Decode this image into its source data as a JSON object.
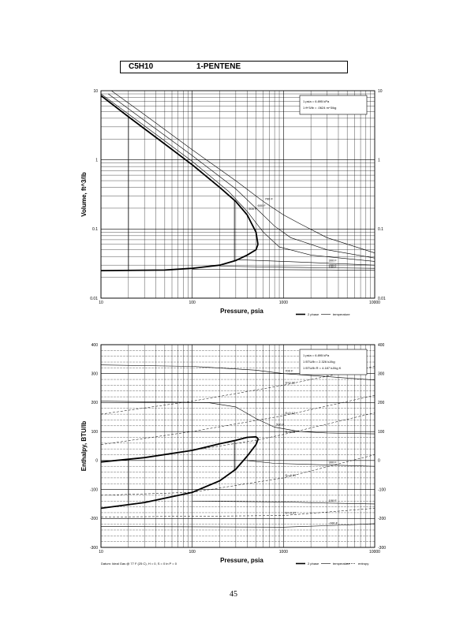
{
  "header": {
    "formula": "C5H10",
    "compound": "1-PENTENE"
  },
  "page_number": "45",
  "chart_data": [
    {
      "type": "line",
      "x_scale": "log",
      "y_scale": "log",
      "xlim": [
        10,
        10000
      ],
      "ylim": [
        0.01,
        10
      ],
      "xlabel": "Pressure, psia",
      "ylabel": "Volume, ft^3/lb",
      "x_ticks": [
        "10",
        "100",
        "1000",
        "10000"
      ],
      "y_ticks": [
        "0.01",
        "0.1",
        "1",
        "10"
      ],
      "right_ticks": [
        "0.01",
        "0.1",
        "1",
        "10"
      ],
      "grid": true,
      "notes": [
        "1 psia = 6.895 kPa",
        "1 ft^3/lb = .0624 m^3/kg"
      ],
      "legend": [
        "2 phase",
        "temperature"
      ],
      "dome": {
        "vapor": [
          [
            10,
            8.5
          ],
          [
            20,
            4.2
          ],
          [
            50,
            1.7
          ],
          [
            100,
            0.85
          ],
          [
            200,
            0.4
          ],
          [
            300,
            0.25
          ],
          [
            400,
            0.16
          ],
          [
            500,
            0.09
          ],
          [
            525,
            0.06
          ]
        ],
        "liquid": [
          [
            10,
            0.025
          ],
          [
            50,
            0.0255
          ],
          [
            100,
            0.027
          ],
          [
            200,
            0.03
          ],
          [
            300,
            0.035
          ],
          [
            400,
            0.042
          ],
          [
            500,
            0.05
          ],
          [
            525,
            0.06
          ]
        ]
      },
      "two_phase_verticals": [
        20,
        290
      ],
      "isotherms": [
        {
          "label": "700 F",
          "points": [
            [
              13,
              10
            ],
            [
              30,
              4.5
            ],
            [
              100,
              1.4
            ],
            [
              300,
              0.5
            ],
            [
              600,
              0.25
            ],
            [
              1000,
              0.16
            ],
            [
              1500,
              0.12
            ],
            [
              3000,
              0.075
            ],
            [
              10000,
              0.045
            ]
          ]
        },
        {
          "label": "600 F",
          "points": [
            [
              12,
              9
            ],
            [
              30,
              3.7
            ],
            [
              100,
              1.15
            ],
            [
              300,
              0.38
            ],
            [
              500,
              0.2
            ],
            [
              800,
              0.11
            ],
            [
              1200,
              0.075
            ],
            [
              3000,
              0.05
            ],
            [
              10000,
              0.038
            ]
          ]
        },
        {
          "label": "500 F",
          "points": [
            [
              10,
              9
            ],
            [
              30,
              3.1
            ],
            [
              100,
              0.95
            ],
            [
              250,
              0.35
            ],
            [
              400,
              0.18
            ],
            [
              600,
              0.09
            ],
            [
              900,
              0.055
            ],
            [
              2000,
              0.042
            ],
            [
              10000,
              0.034
            ]
          ]
        },
        {
          "label": "300 F",
          "points": [
            [
              300,
              0.036
            ],
            [
              1000,
              0.034
            ],
            [
              3000,
              0.032
            ],
            [
              10000,
              0.03
            ]
          ]
        },
        {
          "label": "200 F",
          "points": [
            [
              200,
              0.029
            ],
            [
              1000,
              0.028
            ],
            [
              3000,
              0.0275
            ],
            [
              10000,
              0.027
            ]
          ]
        },
        {
          "label": "100 F",
          "points": [
            [
              100,
              0.026
            ],
            [
              1000,
              0.0258
            ],
            [
              3000,
              0.0256
            ],
            [
              10000,
              0.0252
            ]
          ]
        }
      ]
    },
    {
      "type": "line",
      "x_scale": "log",
      "xlim": [
        10,
        10000
      ],
      "ylim": [
        -300,
        400
      ],
      "xlabel": "Pressure, psia",
      "ylabel": "Enthalpy, BTU/lb",
      "x_ticks": [
        "10",
        "100",
        "1000",
        "10000"
      ],
      "y_ticks": [
        "-300",
        "-200",
        "-100",
        "0",
        "100",
        "200",
        "300",
        "400"
      ],
      "right_ticks": [
        "-300",
        "-200",
        "-100",
        "0",
        "100",
        "200",
        "300",
        "400"
      ],
      "grid": true,
      "notes": [
        "1 psia = 6.895 kPa",
        "1 BTU/lb = 2.326 kJ/kg",
        "1 BTU/lb R = 4.187 kJ/kg K"
      ],
      "legend": [
        "2 phase",
        "temperature",
        "entropy"
      ],
      "footnote": "Datum: Ideal Gas @ 77 F (25 C), H = 0, S = 0 in P = 0",
      "dome": {
        "vapor": [
          [
            10,
            -5
          ],
          [
            30,
            10
          ],
          [
            100,
            35
          ],
          [
            200,
            58
          ],
          [
            300,
            70
          ],
          [
            400,
            80
          ],
          [
            500,
            82
          ],
          [
            530,
            75
          ]
        ],
        "liquid": [
          [
            10,
            -165
          ],
          [
            30,
            -145
          ],
          [
            100,
            -110
          ],
          [
            200,
            -70
          ],
          [
            300,
            -30
          ],
          [
            400,
            15
          ],
          [
            500,
            55
          ],
          [
            530,
            75
          ]
        ]
      },
      "two_phase_verticals": [
        20,
        290
      ],
      "isotherms": [
        {
          "label": "700 F",
          "points": [
            [
              10,
              330
            ],
            [
              100,
              325
            ],
            [
              500,
              312
            ],
            [
              1000,
              300
            ],
            [
              3000,
              290
            ],
            [
              10000,
              278
            ]
          ]
        },
        {
          "label": "500 F",
          "points": [
            [
              10,
              205
            ],
            [
              150,
              200
            ],
            [
              300,
              185
            ],
            [
              500,
              145
            ],
            [
              800,
              115
            ],
            [
              1500,
              100
            ],
            [
              3000,
              95
            ],
            [
              10000,
              92
            ]
          ]
        },
        {
          "label": "300 F",
          "points": [
            [
              400,
              0
            ],
            [
              800,
              -10
            ],
            [
              3000,
              -15
            ],
            [
              10000,
              -20
            ]
          ]
        },
        {
          "label": "100 F",
          "points": [
            [
              100,
              -140
            ],
            [
              1000,
              -143
            ],
            [
              3000,
              -147
            ],
            [
              10000,
              -150
            ]
          ]
        },
        {
          "label": "-100 F",
          "points": [
            [
              10,
              -228
            ],
            [
              1000,
              -230
            ],
            [
              3000,
              -225
            ],
            [
              10000,
              -218
            ]
          ]
        }
      ],
      "entropy_lines": [
        {
          "label": "S=0.22",
          "points": [
            [
              10,
              160
            ],
            [
              100,
              205
            ],
            [
              1000,
              260
            ],
            [
              10000,
              325
            ]
          ]
        },
        {
          "label": "S=0.12",
          "points": [
            [
              10,
              55
            ],
            [
              100,
              100
            ],
            [
              1000,
              155
            ],
            [
              10000,
              225
            ]
          ]
        },
        {
          "label": "S=0.03",
          "points": [
            [
              100,
              35
            ],
            [
              500,
              70
            ],
            [
              1000,
              90
            ],
            [
              10000,
              165
            ]
          ]
        },
        {
          "label": "S=-0.17",
          "points": [
            [
              10,
              -120
            ],
            [
              100,
              -110
            ],
            [
              1000,
              -60
            ],
            [
              10000,
              20
            ]
          ]
        },
        {
          "label": "S=-0.37",
          "points": [
            [
              10,
              -195
            ],
            [
              1000,
              -190
            ],
            [
              10000,
              -165
            ]
          ]
        }
      ]
    }
  ]
}
